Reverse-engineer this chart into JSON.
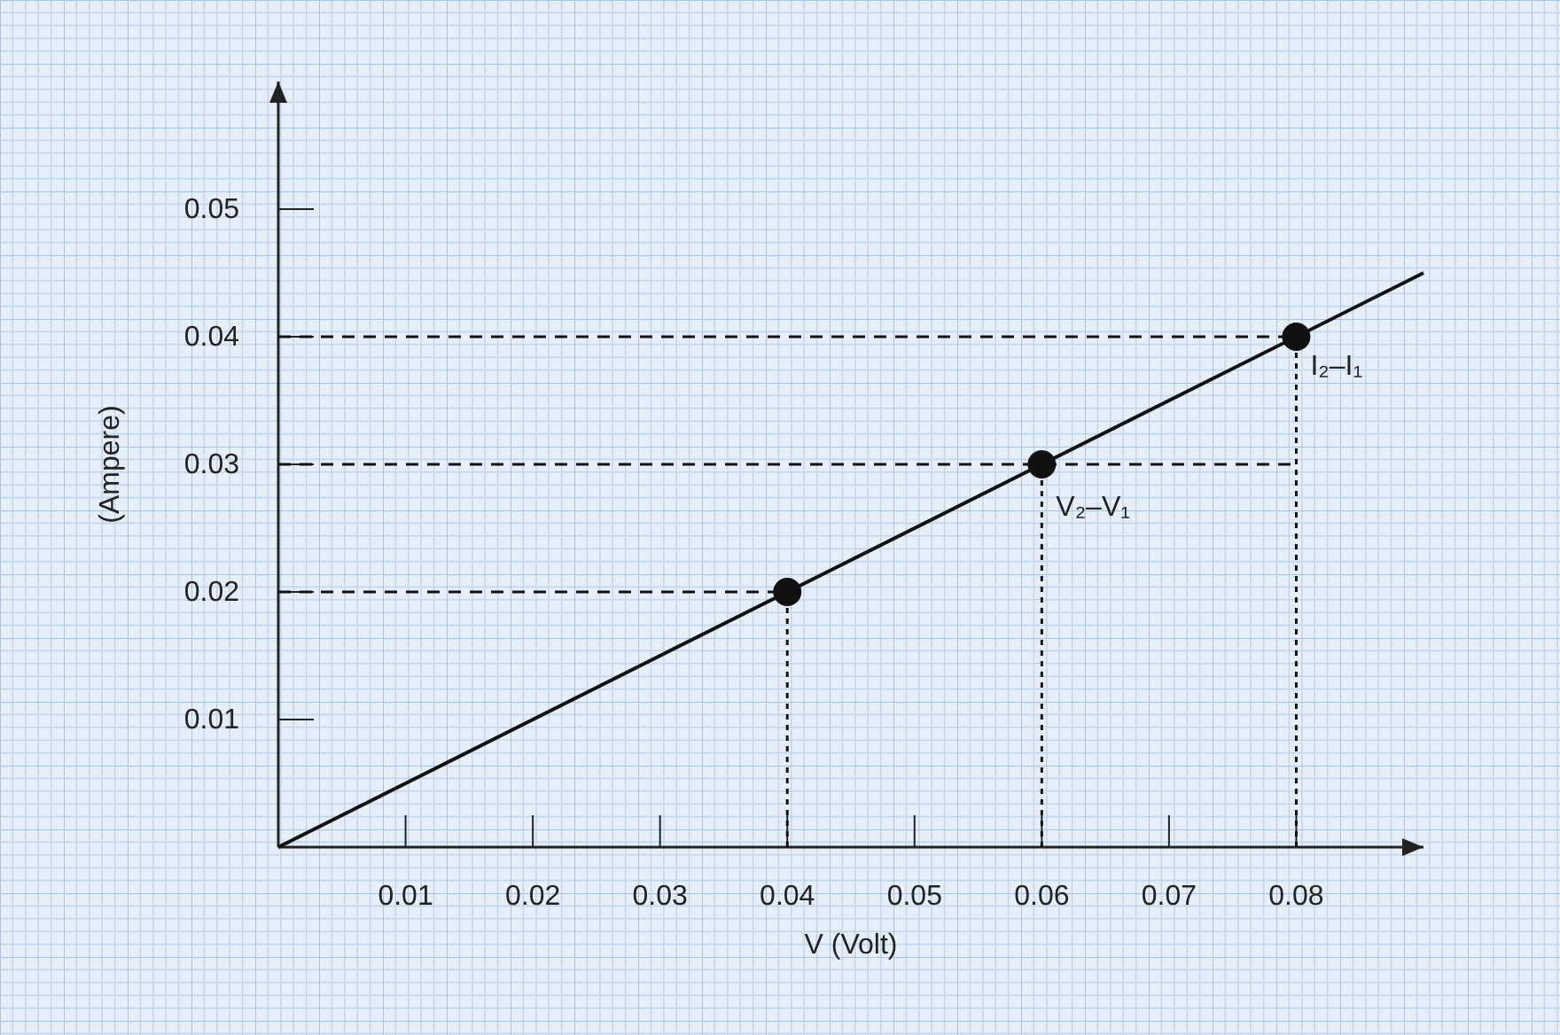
{
  "chart_data": {
    "type": "line",
    "xlabel": "V (Volt)",
    "ylabel": "(Ampere)",
    "xlim": [
      0,
      0.09
    ],
    "ylim": [
      0,
      0.06
    ],
    "xticks": [
      0.01,
      0.02,
      0.03,
      0.04,
      0.05,
      0.06,
      0.07,
      0.08
    ],
    "yticks": [
      0.01,
      0.02,
      0.03,
      0.04,
      0.05
    ],
    "grid": false,
    "series": [
      {
        "color": "#111111",
        "x": [
          0,
          0.09
        ],
        "values": [
          0,
          0.045
        ],
        "line_style": "solid"
      },
      {
        "type": "scatter",
        "color": "#111111",
        "x": [
          0.04,
          0.06,
          0.08
        ],
        "values": [
          0.02,
          0.03,
          0.04
        ],
        "marker": "circle"
      },
      {
        "type": "line",
        "color": "#111111",
        "x": [
          0,
          0.04
        ],
        "values": [
          0.02,
          0.02
        ],
        "line_style": "dashed"
      },
      {
        "type": "line",
        "color": "#111111",
        "x": [
          0,
          0.08
        ],
        "values": [
          0.03,
          0.03
        ],
        "line_style": "dashed"
      },
      {
        "type": "line",
        "color": "#111111",
        "x": [
          0,
          0.08
        ],
        "values": [
          0.04,
          0.04
        ],
        "line_style": "dashed"
      },
      {
        "type": "line",
        "color": "#111111",
        "x": [
          0.04,
          0.04
        ],
        "values": [
          0,
          0.02
        ],
        "line_style": "dotted"
      },
      {
        "type": "line",
        "color": "#111111",
        "x": [
          0.06,
          0.06
        ],
        "values": [
          0,
          0.03
        ],
        "line_style": "dotted"
      },
      {
        "type": "line",
        "color": "#111111",
        "x": [
          0.08,
          0.08
        ],
        "values": [
          0,
          0.04
        ],
        "line_style": "dotted"
      }
    ],
    "annotations": [
      {
        "text": "V₂–V₁",
        "x": 0.06,
        "y": 0.026
      },
      {
        "text": "I₂–I₁",
        "x": 0.08,
        "y": 0.037
      }
    ]
  }
}
